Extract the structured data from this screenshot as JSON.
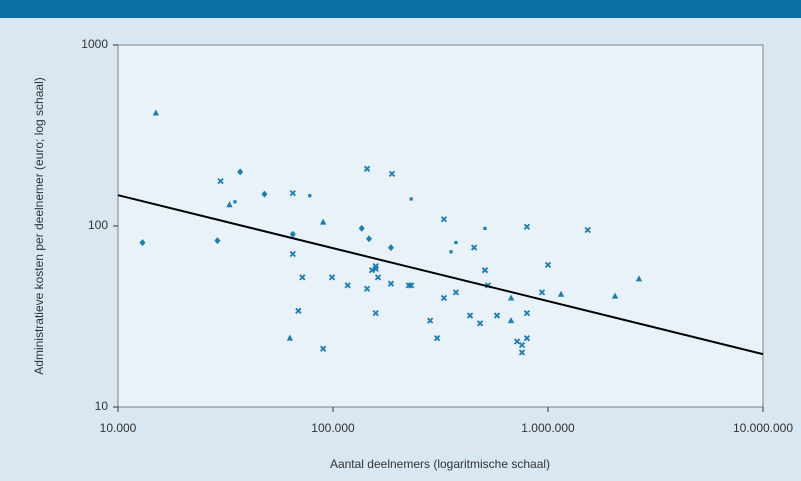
{
  "chart_data": {
    "type": "scatter",
    "xlabel": "Aantal deelnemers (logaritmische schaal)",
    "ylabel": "Administratieve kosten per deelnemer (euro; log schaal)",
    "xscale": "log",
    "yscale": "log",
    "xlim": [
      10000,
      10000000
    ],
    "ylim": [
      10,
      1000
    ],
    "xticks": [
      {
        "value": 10000,
        "label": "10.000"
      },
      {
        "value": 100000,
        "label": "100.000"
      },
      {
        "value": 1000000,
        "label": "1.000.000"
      },
      {
        "value": 10000000,
        "label": "10.000.000"
      }
    ],
    "yticks": [
      10,
      100,
      1000
    ],
    "color": "#1a7db5",
    "series": [
      {
        "marker": "triangle",
        "x": [
          15000,
          33000,
          90000,
          63000,
          673000,
          673000,
          1150000,
          2050000,
          2650000
        ],
        "y": [
          421,
          131,
          105,
          24,
          40,
          30,
          42,
          41,
          51
        ]
      },
      {
        "marker": "diamond",
        "x": [
          13000,
          29000,
          37000,
          48000,
          65000,
          136000,
          147000,
          186000
        ],
        "y": [
          81,
          83,
          199,
          150,
          90,
          97,
          85,
          76
        ]
      },
      {
        "marker": "square",
        "x": [
          35000,
          78000,
          231000,
          373000,
          354000,
          509000
        ],
        "y": [
          136,
          147,
          141,
          81,
          72,
          97
        ]
      },
      {
        "marker": "cross",
        "x": [
          30000,
          65000,
          144000,
          188000,
          328000,
          798000,
          1530000,
          1000000,
          65000,
          72000,
          69000,
          90000,
          99000,
          117000,
          144000,
          152000,
          158000,
          158000,
          162000,
          186000,
          158000,
          225000,
          231000,
          283000,
          305000,
          328000,
          373000,
          453000,
          434000,
          483000,
          526000,
          509000,
          579000,
          718000,
          757000,
          798000,
          798000,
          938000,
          757000
        ],
        "y": [
          177,
          152,
          207,
          194,
          109,
          99,
          95,
          61,
          70,
          52,
          34,
          21,
          52,
          47,
          45,
          57,
          60,
          58,
          52,
          48,
          33,
          47,
          47,
          30,
          24,
          40,
          43,
          76,
          32,
          29,
          47,
          57,
          32,
          23,
          22,
          24,
          33,
          43,
          20
        ]
      }
    ],
    "trendline": {
      "x": [
        10000,
        10000000
      ],
      "y": [
        148,
        19.6
      ],
      "color": "#000000"
    }
  }
}
